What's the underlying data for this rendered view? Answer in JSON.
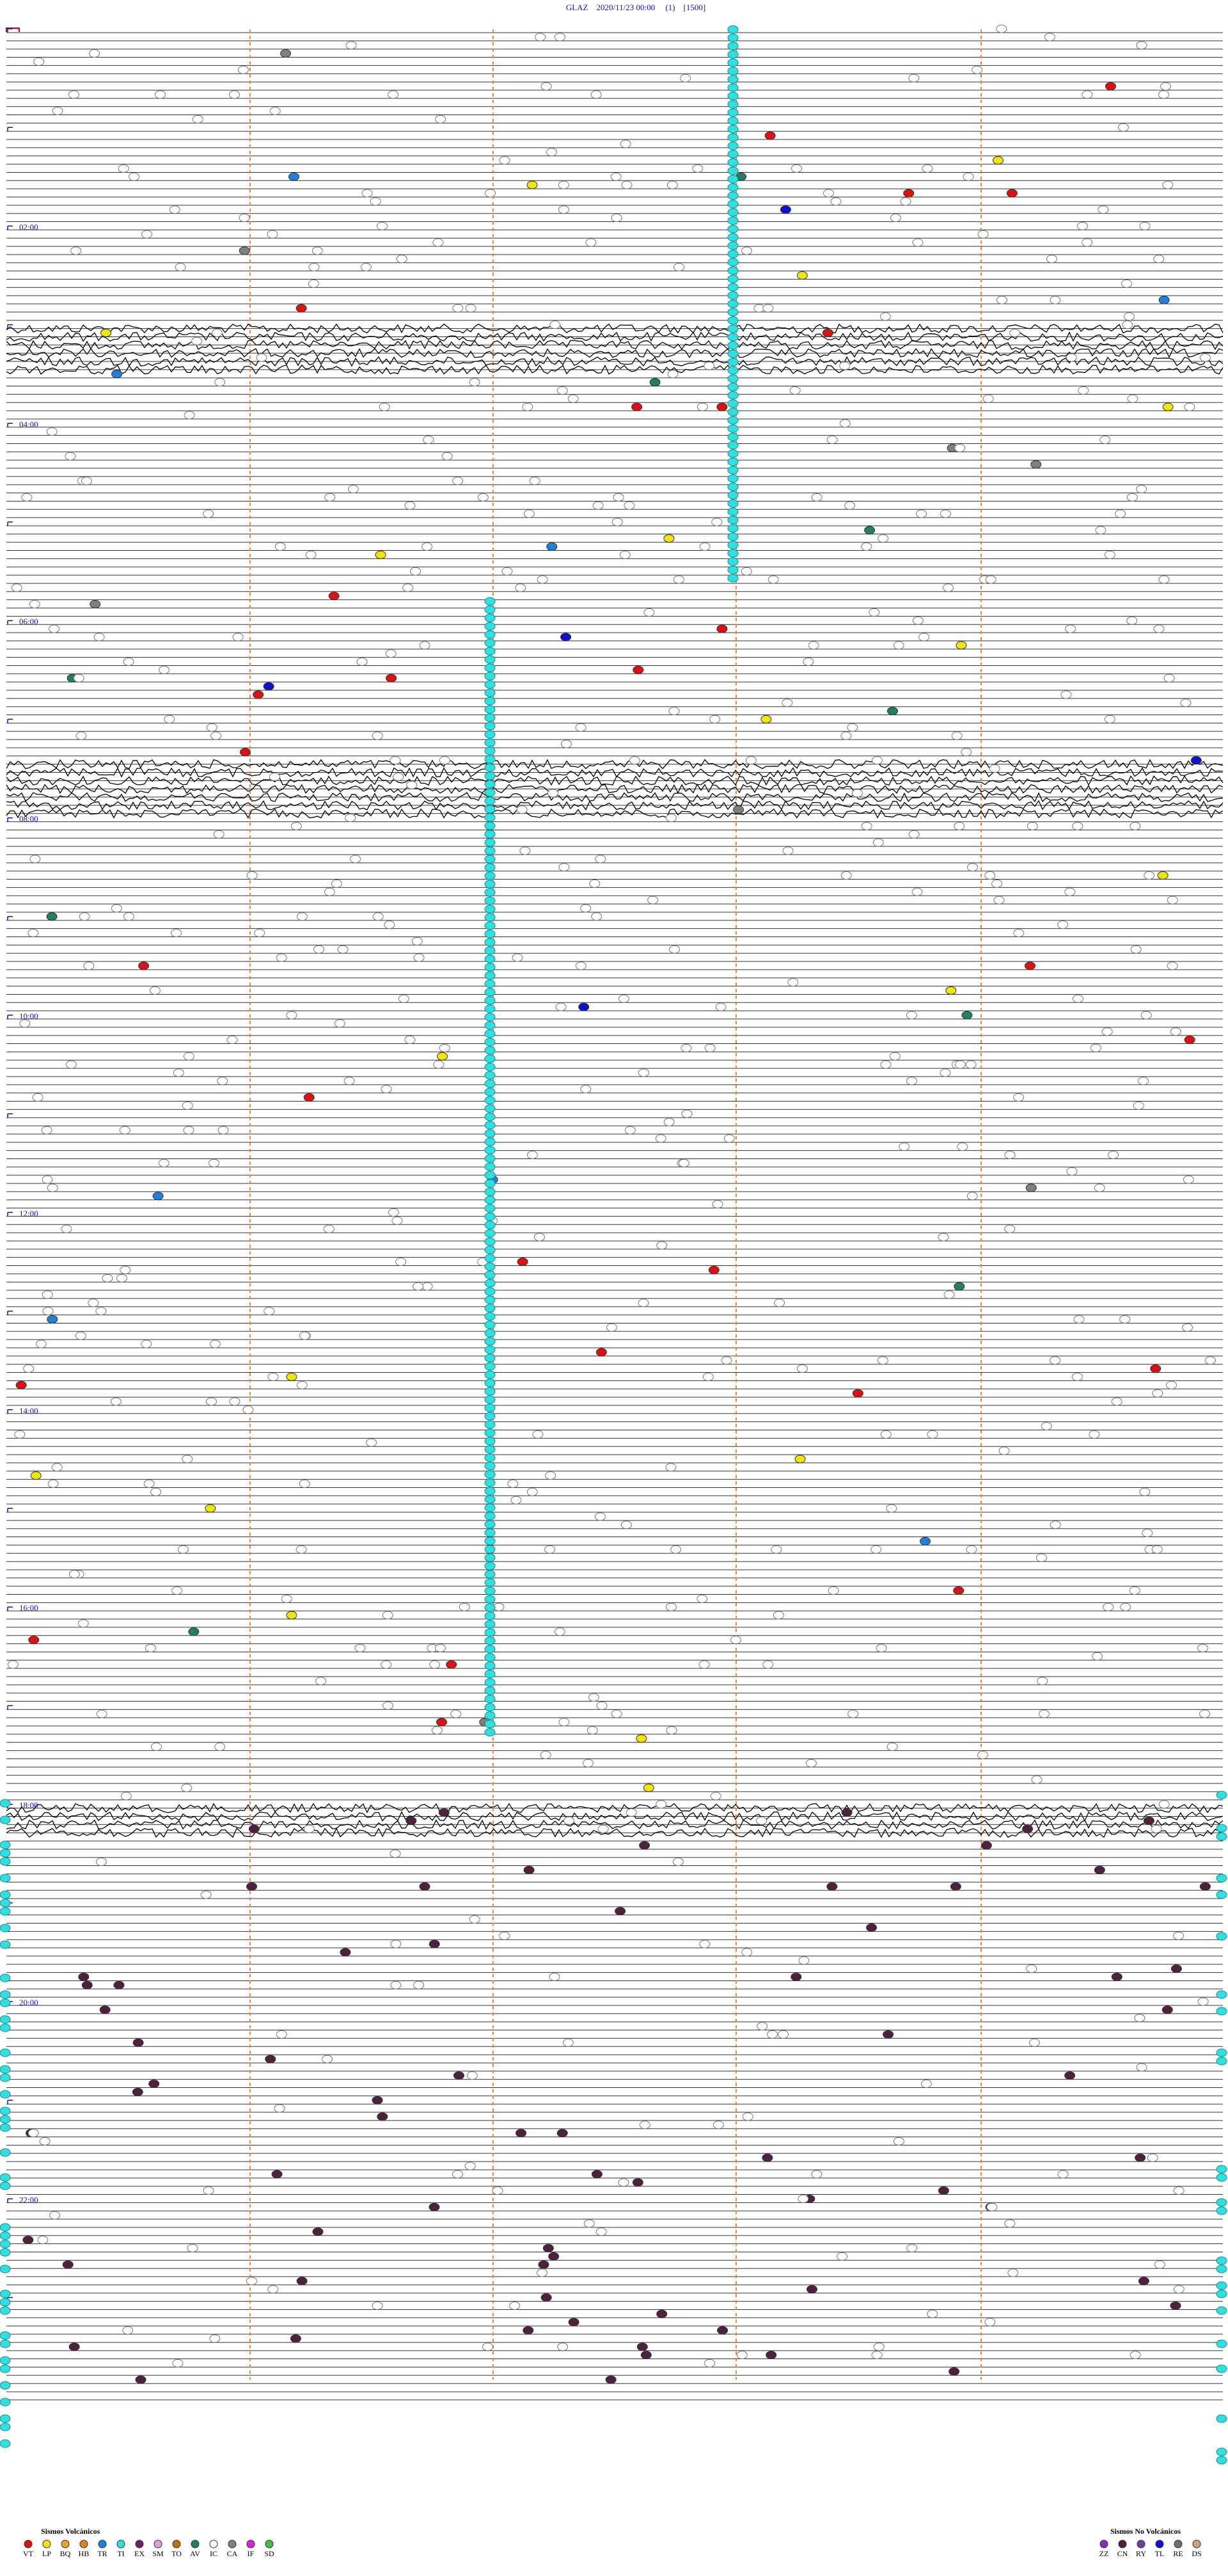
{
  "header": {
    "title": "GLAZ    2020/11/23 00:00     (1)    [1500]"
  },
  "time_labels": [
    "02:00",
    "04:00",
    "06:00",
    "08:00",
    "10:00",
    "12:00",
    "14:00",
    "16:00",
    "18:00",
    "20:00",
    "22:00"
  ],
  "legend": {
    "volcanic": {
      "title": "Sismos Volcánicos",
      "items": [
        {
          "code": "VT",
          "color": "#e01010"
        },
        {
          "code": "LP",
          "color": "#f2e600"
        },
        {
          "code": "BQ",
          "color": "#f0a030"
        },
        {
          "code": "HB",
          "color": "#e08020"
        },
        {
          "code": "TR",
          "color": "#2080e0"
        },
        {
          "code": "TI",
          "color": "#30e0e0"
        },
        {
          "code": "EX",
          "color": "#702060"
        },
        {
          "code": "SM",
          "color": "#e0a0e0"
        },
        {
          "code": "TO",
          "color": "#c07000"
        },
        {
          "code": "AV",
          "color": "#208060"
        },
        {
          "code": "IC",
          "color": "#ffffff"
        },
        {
          "code": "CA",
          "color": "#808080"
        },
        {
          "code": "IF",
          "color": "#e020e0"
        },
        {
          "code": "SD",
          "color": "#40c040"
        }
      ]
    },
    "non_volcanic": {
      "title": "Sismos No Volcánicos",
      "items": [
        {
          "code": "ZZ",
          "color": "#8030c0"
        },
        {
          "code": "CN",
          "color": "#502040"
        },
        {
          "code": "RY",
          "color": "#7040a0"
        },
        {
          "code": "TL",
          "color": "#1010d0"
        },
        {
          "code": "RE",
          "color": "#707070"
        },
        {
          "code": "DS",
          "color": "#d0a080"
        }
      ]
    }
  }
}
